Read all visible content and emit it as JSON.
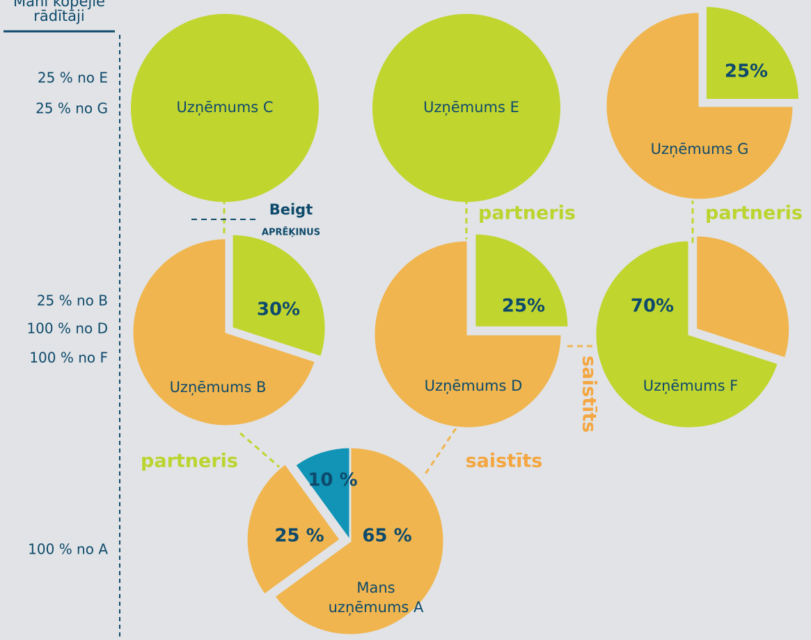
{
  "header": {
    "title_line1": "Mani kopējie",
    "title_line2": "rādītāji"
  },
  "totals": [
    "25 % no E",
    "25 % no G",
    "25 % no B",
    "100 % no D",
    "100 % no F",
    "100 % no A"
  ],
  "nodes": [
    {
      "label": "Uzņēmums C"
    },
    {
      "label": "Uzņēmums E"
    },
    {
      "label": "Uzņēmums G",
      "slices": [
        {
          "value": 25,
          "label": "25%"
        }
      ]
    },
    {
      "label": "Uzņēmums B",
      "slices": [
        {
          "value": 30,
          "label": "30%"
        }
      ]
    },
    {
      "label": "Uzņēmums D",
      "slices": [
        {
          "value": 25,
          "label": "25%"
        }
      ]
    },
    {
      "label": "Uzņēmums F",
      "slices": [
        {
          "value": 70,
          "label": "70%"
        }
      ]
    },
    {
      "label_line1": "Mans",
      "label_line2": "uzņēmums A",
      "slices": [
        {
          "value": 10,
          "label": "10 %"
        },
        {
          "value": 25,
          "label": "25 %"
        },
        {
          "value": 65,
          "label": "65 %"
        }
      ]
    }
  ],
  "links": [
    {
      "label_line1": "Beigt",
      "label_line2": "APRĒĶINUS"
    },
    {
      "label": "partneris"
    },
    {
      "label": "partneris"
    },
    {
      "label": "partneris"
    },
    {
      "label": "saistīts"
    },
    {
      "label": "saistīts"
    }
  ]
}
